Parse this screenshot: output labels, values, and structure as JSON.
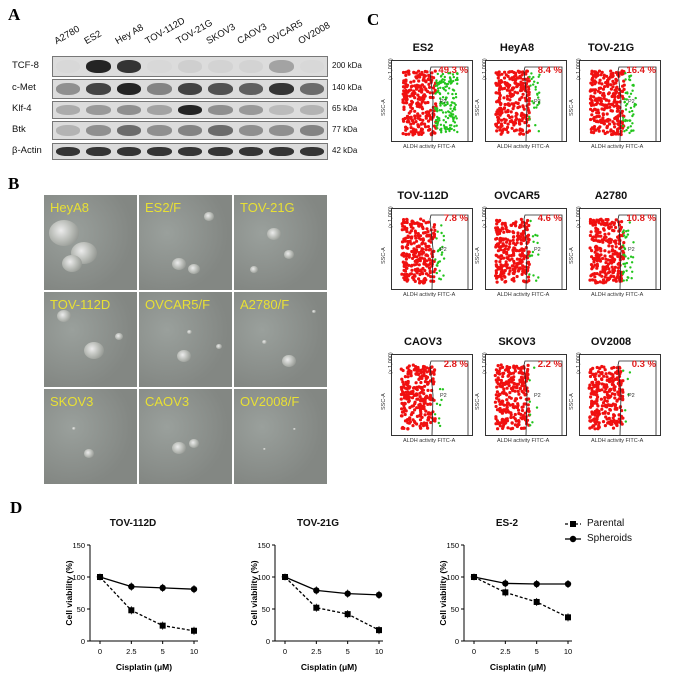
{
  "panels": {
    "a": "A",
    "b": "B",
    "c": "C",
    "d": "D"
  },
  "western_blot": {
    "lanes": [
      "A2780",
      "ES2",
      "Hey A8",
      "TOV-112D",
      "TOV-21G",
      "SKOV3",
      "CAOV3",
      "OVCAR5",
      "OV2008"
    ],
    "rows": [
      {
        "name": "TCF-8",
        "kda": "200 kDa",
        "intensity": [
          0.05,
          0.95,
          0.9,
          0.05,
          0.15,
          0.1,
          0.1,
          0.45,
          0.05
        ]
      },
      {
        "name": "c-Met",
        "kda": "140 kDa",
        "intensity": [
          0.55,
          0.85,
          0.95,
          0.6,
          0.85,
          0.8,
          0.75,
          0.9,
          0.7
        ]
      },
      {
        "name": "Klf-4",
        "kda": "65 kDa",
        "intensity": [
          0.4,
          0.5,
          0.55,
          0.45,
          0.95,
          0.55,
          0.5,
          0.3,
          0.35
        ]
      },
      {
        "name": "Btk",
        "kda": "77 kDa",
        "intensity": [
          0.35,
          0.55,
          0.7,
          0.55,
          0.6,
          0.7,
          0.55,
          0.55,
          0.6
        ]
      },
      {
        "name": "β-Actin",
        "kda": "42 kDa",
        "intensity": [
          0.9,
          0.9,
          0.9,
          0.9,
          0.9,
          0.9,
          0.9,
          0.9,
          0.9
        ]
      }
    ]
  },
  "microscopy": [
    {
      "label": "HeyA8"
    },
    {
      "label": "ES2/F"
    },
    {
      "label": "TOV-21G"
    },
    {
      "label": "TOV-112D"
    },
    {
      "label": "OVCAR5/F"
    },
    {
      "label": "A2780/F"
    },
    {
      "label": "SKOV3"
    },
    {
      "label": "CAOV3"
    },
    {
      "label": "OV2008/F"
    }
  ],
  "flow": {
    "y_label": "SSC-A",
    "y_scale": "(x 1,000)",
    "x_label": "ALDH activity FITC-A",
    "gate": "P2",
    "plots": [
      {
        "title": "ES2",
        "percent": "49.3 %",
        "positive": 0.493
      },
      {
        "title": "HeyA8",
        "percent": "8.4 %",
        "positive": 0.084
      },
      {
        "title": "TOV-21G",
        "percent": "16.4 %",
        "positive": 0.164
      },
      {
        "title": "TOV-112D",
        "percent": "7.8 %",
        "positive": 0.078
      },
      {
        "title": "OVCAR5",
        "percent": "4.6 %",
        "positive": 0.046
      },
      {
        "title": "A2780",
        "percent": "10.8 %",
        "positive": 0.108
      },
      {
        "title": "CAOV3",
        "percent": "2.8 %",
        "positive": 0.028
      },
      {
        "title": "SKOV3",
        "percent": "2.2 %",
        "positive": 0.022
      },
      {
        "title": "OV2008",
        "percent": "0.3 %",
        "positive": 0.003
      }
    ]
  },
  "legend": {
    "parental": "Parental",
    "spheroids": "Spheroids"
  },
  "chart_data": [
    {
      "type": "line",
      "title": "TOV-112D",
      "xlabel": "Cisplatin (μM)",
      "ylabel": "Cell viability (%)",
      "categories": [
        "0",
        "2.5",
        "5",
        "10"
      ],
      "yticks": [
        0,
        50,
        100,
        150
      ],
      "ylim": [
        0,
        150
      ],
      "series": [
        {
          "name": "Parental",
          "values": [
            100,
            48,
            24,
            16
          ]
        },
        {
          "name": "Spheroids",
          "values": [
            100,
            85,
            83,
            81
          ]
        }
      ]
    },
    {
      "type": "line",
      "title": "TOV-21G",
      "xlabel": "Cisplatin (μM)",
      "ylabel": "Cell viability (%)",
      "categories": [
        "0",
        "2.5",
        "5",
        "10"
      ],
      "yticks": [
        0,
        50,
        100,
        150
      ],
      "ylim": [
        0,
        150
      ],
      "series": [
        {
          "name": "Parental",
          "values": [
            100,
            52,
            42,
            17
          ]
        },
        {
          "name": "Spheroids",
          "values": [
            100,
            79,
            74,
            72
          ]
        }
      ]
    },
    {
      "type": "line",
      "title": "ES-2",
      "xlabel": "Cisplatin (μM)",
      "ylabel": "Cell viability (%)",
      "categories": [
        "0",
        "2.5",
        "5",
        "10"
      ],
      "yticks": [
        0,
        50,
        100,
        150
      ],
      "ylim": [
        0,
        150
      ],
      "series": [
        {
          "name": "Parental",
          "values": [
            100,
            76,
            61,
            37
          ]
        },
        {
          "name": "Spheroids",
          "values": [
            100,
            90,
            89,
            89
          ]
        }
      ]
    }
  ]
}
